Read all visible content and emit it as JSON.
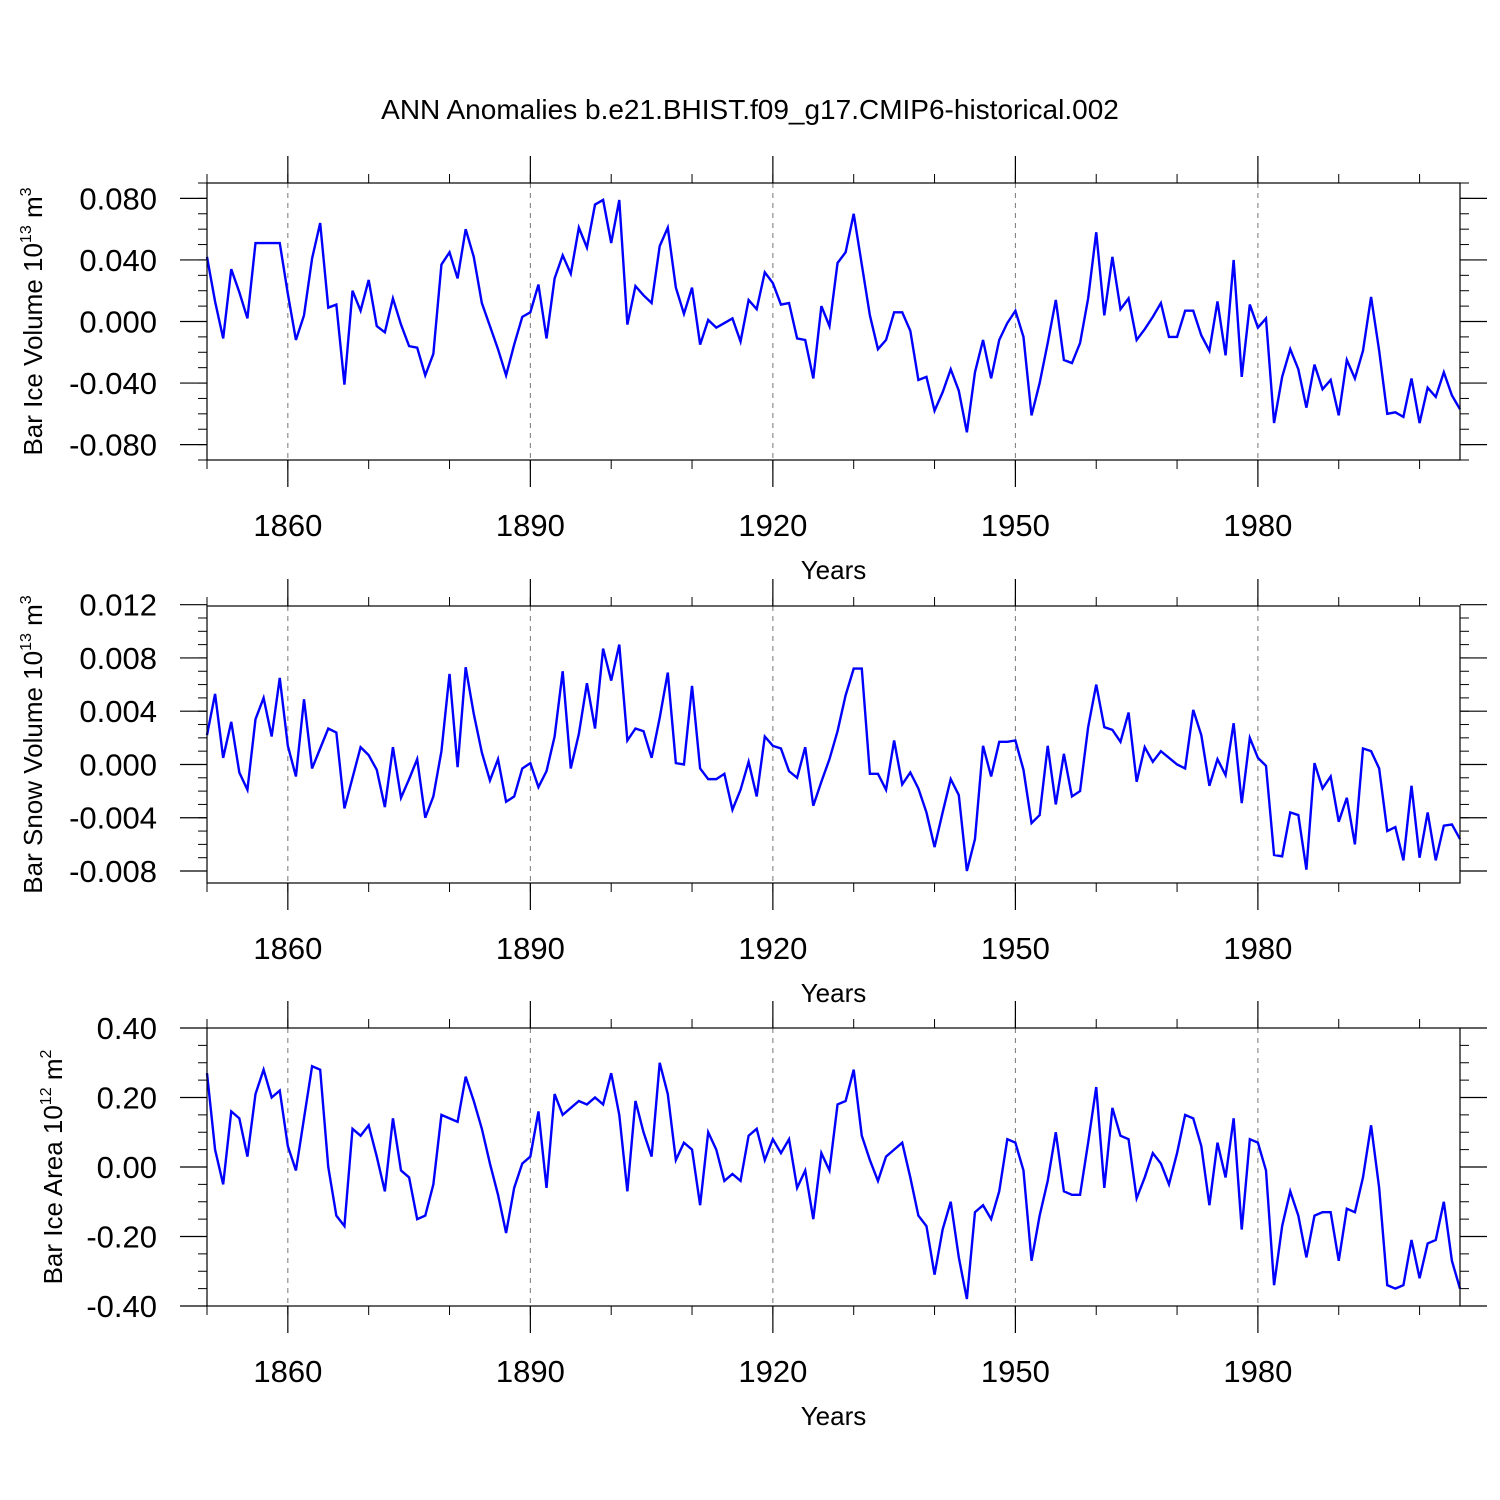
{
  "chart_data": {
    "title": "ANN Anomalies b.e21.BHIST.f09_g17.CMIP6-historical.002",
    "type": "line",
    "x_start": 1850,
    "x_end": 2004,
    "xlim": [
      1850,
      2005
    ],
    "xticks": [
      "1860",
      "1890",
      "1920",
      "1950",
      "1980"
    ],
    "line_color": "#0000ff",
    "panels": [
      {
        "ylabel": {
          "base": "Bar Ice Volume 10",
          "exp": "13",
          "unit": " m",
          "unit_exp": "3"
        },
        "xlabel": "Years",
        "ylim": [
          -0.09,
          0.09
        ],
        "yticks": [
          "0.080",
          "0.040",
          "0.000",
          "-0.040",
          "-0.080"
        ],
        "values": [
          0.042,
          0.013,
          -0.011,
          0.034,
          0.019,
          0.002,
          0.051,
          0.051,
          0.051,
          0.051,
          0.018,
          -0.012,
          0.004,
          0.041,
          0.064,
          0.009,
          0.011,
          -0.041,
          0.02,
          0.007,
          0.027,
          -0.003,
          -0.007,
          0.015,
          -0.002,
          -0.016,
          -0.017,
          -0.035,
          -0.021,
          0.037,
          0.045,
          0.028,
          0.06,
          0.042,
          0.012,
          -0.003,
          -0.018,
          -0.035,
          -0.015,
          0.003,
          0.006,
          0.024,
          -0.011,
          0.028,
          0.043,
          0.031,
          0.061,
          0.048,
          0.076,
          0.079,
          0.051,
          0.079,
          -0.002,
          0.023,
          0.017,
          0.012,
          0.049,
          0.061,
          0.022,
          0.005,
          0.022,
          -0.015,
          0.001,
          -0.004,
          -0.001,
          0.002,
          -0.013,
          0.014,
          0.008,
          0.032,
          0.025,
          0.011,
          0.012,
          -0.011,
          -0.012,
          -0.037,
          0.01,
          -0.003,
          0.038,
          0.045,
          0.07,
          0.037,
          0.004,
          -0.018,
          -0.012,
          0.006,
          0.006,
          -0.006,
          -0.038,
          -0.036,
          -0.058,
          -0.046,
          -0.031,
          -0.045,
          -0.072,
          -0.033,
          -0.012,
          -0.037,
          -0.012,
          -0.001,
          0.007,
          -0.01,
          -0.061,
          -0.04,
          -0.014,
          0.014,
          -0.025,
          -0.027,
          -0.014,
          0.015,
          0.058,
          0.004,
          0.042,
          0.008,
          0.015,
          -0.012,
          -0.005,
          0.003,
          0.012,
          -0.01,
          -0.01,
          0.007,
          0.007,
          -0.009,
          -0.019,
          0.013,
          -0.022,
          0.04,
          -0.036,
          0.011,
          -0.004,
          0.002,
          -0.066,
          -0.036,
          -0.018,
          -0.031,
          -0.056,
          -0.028,
          -0.044,
          -0.038,
          -0.061,
          -0.025,
          -0.037,
          -0.019,
          0.016,
          -0.019,
          -0.06,
          -0.059,
          -0.062,
          -0.037,
          -0.066,
          -0.043,
          -0.049,
          -0.033,
          -0.048,
          -0.057
        ]
      },
      {
        "ylabel": {
          "base": "Bar Snow Volume 10",
          "exp": "13",
          "unit": " m",
          "unit_exp": "3"
        },
        "xlabel": "Years",
        "ylim": [
          -0.0089,
          0.0119
        ],
        "yticks": [
          "0.012",
          "0.008",
          "0.004",
          "0.000",
          "-0.004",
          "-0.008"
        ],
        "values": [
          0.0022,
          0.0053,
          0.0005,
          0.0032,
          -0.0006,
          -0.0019,
          0.0034,
          0.005,
          0.0021,
          0.0065,
          0.0014,
          -0.0009,
          0.0049,
          -0.0003,
          0.0012,
          0.0027,
          0.0024,
          -0.0033,
          -0.001,
          0.0013,
          0.0007,
          -0.0004,
          -0.0032,
          0.0013,
          -0.0025,
          -0.0011,
          0.0004,
          -0.004,
          -0.0024,
          0.001,
          0.0068,
          -0.0002,
          0.0073,
          0.0038,
          0.0009,
          -0.0012,
          0.0004,
          -0.0028,
          -0.0024,
          -0.0003,
          0.0001,
          -0.0017,
          -0.0005,
          0.0021,
          0.007,
          -0.0003,
          0.0023,
          0.0061,
          0.0027,
          0.0087,
          0.0063,
          0.009,
          0.0018,
          0.0027,
          0.0025,
          0.0005,
          0.0035,
          0.0069,
          0.0001,
          0.0,
          0.0059,
          -0.0003,
          -0.0011,
          -0.0011,
          -0.0007,
          -0.0034,
          -0.0019,
          0.0002,
          -0.0024,
          0.0021,
          0.0014,
          0.0012,
          -0.0005,
          -0.001,
          0.0013,
          -0.0031,
          -0.0013,
          0.0004,
          0.0025,
          0.0052,
          0.0072,
          0.0072,
          -0.0007,
          -0.0007,
          -0.0019,
          0.0018,
          -0.0015,
          -0.0006,
          -0.0018,
          -0.0036,
          -0.0062,
          -0.0036,
          -0.0011,
          -0.0023,
          -0.008,
          -0.0056,
          0.0014,
          -0.0009,
          0.0017,
          0.0017,
          0.0018,
          -0.0004,
          -0.0044,
          -0.0038,
          0.0014,
          -0.003,
          0.0008,
          -0.0024,
          -0.002,
          0.0028,
          0.006,
          0.0028,
          0.0026,
          0.0017,
          0.0039,
          -0.0013,
          0.0013,
          0.0002,
          0.001,
          0.0005,
          0.0,
          -0.0003,
          0.0041,
          0.0022,
          -0.0016,
          0.0004,
          -0.0008,
          0.0031,
          -0.0029,
          0.002,
          0.0005,
          -0.0001,
          -0.0068,
          -0.0069,
          -0.0036,
          -0.0038,
          -0.0079,
          0.0001,
          -0.0018,
          -0.0009,
          -0.0043,
          -0.0025,
          -0.006,
          0.0012,
          0.001,
          -0.0003,
          -0.005,
          -0.0047,
          -0.0072,
          -0.0016,
          -0.007,
          -0.0036,
          -0.0072,
          -0.0046,
          -0.0045,
          -0.0056
        ]
      },
      {
        "ylabel": {
          "base": "Bar Ice Area 10",
          "exp": "12",
          "unit": " m",
          "unit_exp": "2"
        },
        "xlabel": "Years",
        "ylim": [
          -0.4,
          0.4
        ],
        "yticks": [
          "0.40",
          "0.20",
          "0.00",
          "-0.20",
          "-0.40"
        ],
        "values": [
          0.27,
          0.05,
          -0.05,
          0.16,
          0.14,
          0.03,
          0.21,
          0.28,
          0.2,
          0.22,
          0.06,
          -0.01,
          0.14,
          0.29,
          0.28,
          0.0,
          -0.14,
          -0.17,
          0.11,
          0.09,
          0.12,
          0.03,
          -0.07,
          0.14,
          -0.01,
          -0.03,
          -0.15,
          -0.14,
          -0.05,
          0.15,
          0.14,
          0.13,
          0.26,
          0.19,
          0.11,
          0.01,
          -0.08,
          -0.19,
          -0.06,
          0.01,
          0.03,
          0.16,
          -0.06,
          0.21,
          0.15,
          0.17,
          0.19,
          0.18,
          0.2,
          0.18,
          0.27,
          0.15,
          -0.07,
          0.19,
          0.1,
          0.03,
          0.3,
          0.21,
          0.02,
          0.07,
          0.05,
          -0.11,
          0.1,
          0.05,
          -0.04,
          -0.02,
          -0.04,
          0.09,
          0.11,
          0.02,
          0.08,
          0.04,
          0.08,
          -0.06,
          -0.01,
          -0.15,
          0.04,
          -0.01,
          0.18,
          0.19,
          0.28,
          0.09,
          0.02,
          -0.04,
          0.03,
          0.05,
          0.07,
          -0.03,
          -0.14,
          -0.17,
          -0.31,
          -0.18,
          -0.1,
          -0.26,
          -0.38,
          -0.13,
          -0.11,
          -0.15,
          -0.07,
          0.08,
          0.07,
          -0.01,
          -0.27,
          -0.14,
          -0.04,
          0.1,
          -0.07,
          -0.08,
          -0.08,
          0.07,
          0.23,
          -0.06,
          0.17,
          0.09,
          0.08,
          -0.09,
          -0.03,
          0.04,
          0.01,
          -0.05,
          0.04,
          0.15,
          0.14,
          0.06,
          -0.11,
          0.07,
          -0.03,
          0.14,
          -0.18,
          0.08,
          0.07,
          -0.01,
          -0.34,
          -0.17,
          -0.07,
          -0.14,
          -0.26,
          -0.14,
          -0.13,
          -0.13,
          -0.27,
          -0.12,
          -0.13,
          -0.03,
          0.12,
          -0.06,
          -0.34,
          -0.35,
          -0.34,
          -0.21,
          -0.32,
          -0.22,
          -0.21,
          -0.1,
          -0.27,
          -0.35
        ]
      }
    ]
  }
}
